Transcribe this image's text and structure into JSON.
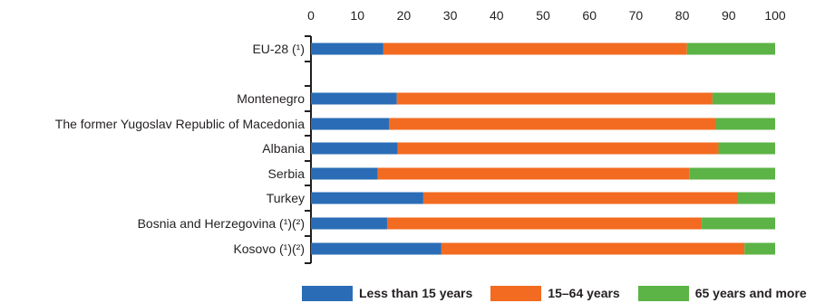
{
  "chart_data": {
    "type": "bar",
    "orientation": "horizontal",
    "stacked": true,
    "categories": [
      "EU-28 (¹)",
      "Montenegro",
      "The former Yugoslav Republic of Macedonia",
      "Albania",
      "Serbia",
      "Turkey",
      "Bosnia and Herzegovina (¹)(²)",
      "Kosovo (¹)(²)"
    ],
    "series": [
      {
        "name": "Less than 15 years",
        "color": "#2a6db6",
        "values": [
          15.6,
          18.5,
          16.8,
          18.7,
          14.4,
          24.2,
          16.4,
          28.1
        ]
      },
      {
        "name": "15–64 years",
        "color": "#f26b21",
        "values": [
          65.4,
          68.0,
          70.4,
          69.1,
          67.1,
          67.8,
          67.8,
          65.3
        ]
      },
      {
        "name": "65 years and more",
        "color": "#5cb346",
        "values": [
          19.0,
          13.5,
          12.8,
          12.2,
          18.5,
          8.0,
          15.8,
          6.6
        ]
      }
    ],
    "xlim": [
      0,
      100
    ],
    "xticks": [
      0,
      10,
      20,
      30,
      40,
      50,
      60,
      70,
      80,
      90,
      100
    ],
    "title": "",
    "xlabel": "",
    "ylabel": "",
    "grid": false,
    "legend_position": "bottom"
  }
}
